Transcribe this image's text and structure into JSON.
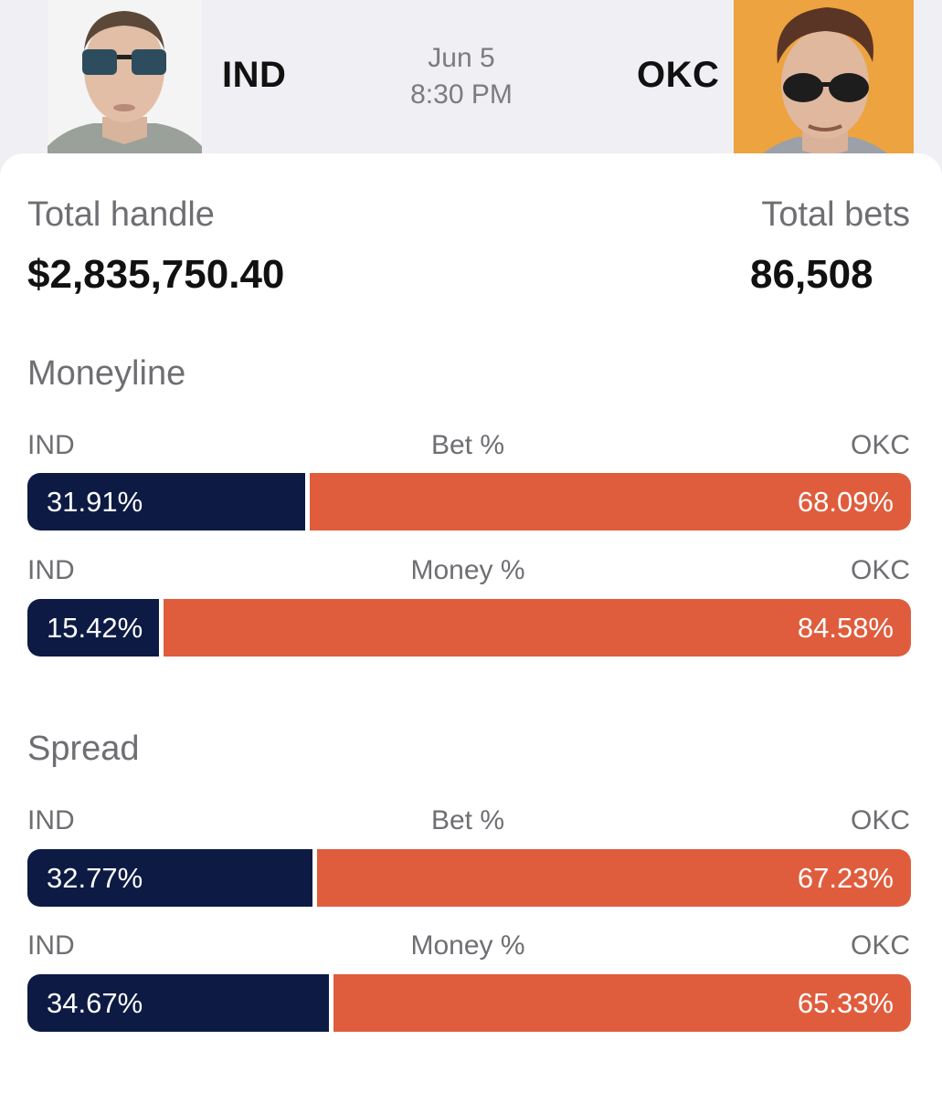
{
  "header": {
    "home_team": "IND",
    "away_team": "OKC",
    "date": "Jun 5",
    "time": "8:30 PM",
    "colors": {
      "background": "#efeff4",
      "home_avatar_bg": "#f3f3f3",
      "away_avatar_bg": "#eda33f"
    }
  },
  "stats": {
    "handle_label": "Total handle",
    "handle_value": "$2,835,750.40",
    "bets_label": "Total bets",
    "bets_value": "86,508"
  },
  "moneyline": {
    "title": "Moneyline",
    "bet": {
      "left_label": "IND",
      "center_label": "Bet %",
      "right_label": "OKC",
      "left_value": "31.91%",
      "right_value": "68.09%",
      "left_fraction": 0.3191
    },
    "money": {
      "left_label": "IND",
      "center_label": "Money %",
      "right_label": "OKC",
      "left_value": "15.42%",
      "right_value": "84.58%",
      "left_fraction": 0.1542
    }
  },
  "spread": {
    "title": "Spread",
    "bet": {
      "left_label": "IND",
      "center_label": "Bet %",
      "right_label": "OKC",
      "left_value": "32.77%",
      "right_value": "67.23%",
      "left_fraction": 0.3277
    },
    "money": {
      "left_label": "IND",
      "center_label": "Money %",
      "right_label": "OKC",
      "left_value": "34.67%",
      "right_value": "65.33%",
      "left_fraction": 0.3467
    }
  },
  "colors": {
    "home_bar": "#0d1b44",
    "away_bar": "#df5d3d"
  }
}
